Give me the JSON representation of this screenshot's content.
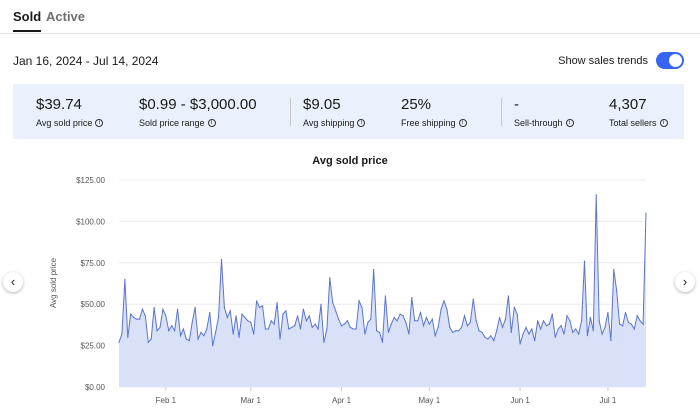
{
  "tabs": [
    {
      "label": "Sold"
    },
    {
      "label": "Active"
    }
  ],
  "date_range": "Jan 16, 2024 - Jul 14, 2024",
  "trend_toggle": {
    "label": "Show sales trends",
    "on": true
  },
  "stats": [
    {
      "value": "$39.74",
      "label": "Avg sold price"
    },
    {
      "value": "$0.99 - $3,000.00",
      "label": "Sold price range"
    },
    {
      "value": "$9.05",
      "label": "Avg shipping"
    },
    {
      "value": "25%",
      "label": "Free shipping"
    },
    {
      "value": "-",
      "label": "Sell-through"
    },
    {
      "value": "4,307",
      "label": "Total sellers"
    }
  ],
  "colors": {
    "accent": "#3665f3",
    "line": "#5b74d0",
    "fill": "#d8e1f8",
    "stats_bg": "#eaf1fd"
  },
  "chart_data": {
    "type": "area",
    "title": "Avg sold price",
    "ylabel": "Avg sold price",
    "xlabel": "",
    "start_date": "2024-01-16",
    "end_date": "2024-07-14",
    "ylim": [
      0,
      125
    ],
    "yticks": [
      "$0.00",
      "$25.00",
      "$50.00",
      "$75.00",
      "$100.00",
      "$125.00"
    ],
    "xticks": [
      {
        "label": "Feb 1",
        "day": 16
      },
      {
        "label": "Mar 1",
        "day": 45
      },
      {
        "label": "Apr 1",
        "day": 76
      },
      {
        "label": "May 1",
        "day": 106
      },
      {
        "label": "Jun 1",
        "day": 137
      },
      {
        "label": "Jul 1",
        "day": 167
      }
    ],
    "values": [
      27,
      32,
      65,
      30,
      44,
      42,
      41,
      41,
      47,
      43,
      27,
      29,
      48,
      34,
      36,
      47,
      43,
      34,
      37,
      34,
      47,
      31,
      35,
      29,
      28,
      39,
      48,
      29,
      33,
      31,
      35,
      45,
      25,
      33,
      42,
      77,
      48,
      42,
      46,
      32,
      43,
      30,
      44,
      42,
      40,
      39,
      32,
      52,
      48,
      49,
      35,
      35,
      40,
      38,
      51,
      29,
      44,
      46,
      35,
      36,
      37,
      43,
      35,
      47,
      40,
      43,
      36,
      38,
      35,
      50,
      27,
      35,
      66,
      51,
      46,
      41,
      37,
      38,
      40,
      36,
      35,
      35,
      52,
      48,
      32,
      39,
      41,
      71,
      34,
      33,
      27,
      55,
      33,
      38,
      42,
      40,
      44,
      43,
      39,
      32,
      54,
      40,
      40,
      45,
      37,
      42,
      38,
      41,
      31,
      36,
      47,
      52,
      47,
      36,
      33,
      34,
      34,
      36,
      43,
      37,
      39,
      53,
      40,
      34,
      33,
      30,
      29,
      31,
      28,
      34,
      42,
      36,
      41,
      55,
      33,
      48,
      44,
      26,
      32,
      36,
      32,
      35,
      28,
      40,
      35,
      40,
      37,
      38,
      44,
      30,
      35,
      37,
      32,
      43,
      40,
      33,
      35,
      32,
      40,
      76,
      31,
      42,
      34,
      116,
      40,
      32,
      36,
      45,
      28,
      71,
      58,
      38,
      37,
      45,
      39,
      38,
      35,
      43,
      40,
      38,
      105
    ]
  },
  "nav": {
    "prev": "‹",
    "next": "›"
  }
}
